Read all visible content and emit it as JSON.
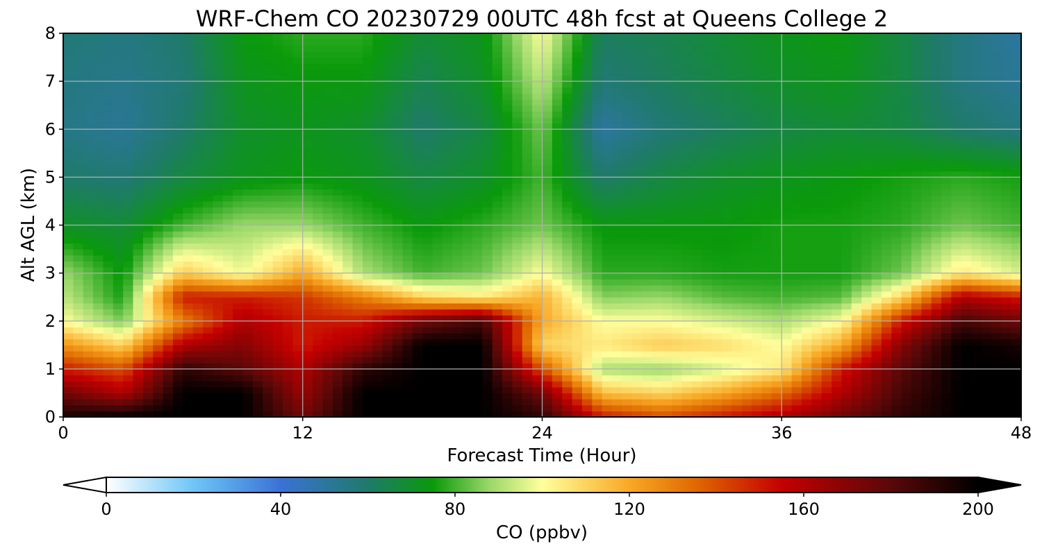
{
  "chart_data": {
    "type": "heatmap",
    "title": "WRF-Chem CO  20230729 00UTC 48h fcst at Queens College 2",
    "xlabel": "Forecast Time (Hour)",
    "ylabel": "Alt AGL (km)",
    "xlim": [
      0,
      48
    ],
    "ylim": [
      0,
      8
    ],
    "xticks": [
      0,
      12,
      24,
      36,
      48
    ],
    "yticks": [
      0,
      1,
      2,
      3,
      4,
      5,
      6,
      7,
      8
    ],
    "grid": true,
    "x": [
      0,
      3,
      6,
      9,
      12,
      15,
      18,
      21,
      24,
      27,
      30,
      33,
      36,
      39,
      42,
      45,
      48
    ],
    "y": [
      0,
      0.5,
      1,
      1.5,
      2,
      2.5,
      3,
      4,
      5,
      6,
      7,
      8
    ],
    "z": [
      [
        195,
        200,
        200,
        200,
        175,
        200,
        200,
        200,
        190,
        150,
        140,
        150,
        160,
        175,
        190,
        200,
        200
      ],
      [
        175,
        160,
        200,
        200,
        165,
        200,
        200,
        200,
        175,
        115,
        110,
        120,
        135,
        160,
        185,
        200,
        200
      ],
      [
        150,
        140,
        190,
        180,
        160,
        190,
        200,
        200,
        140,
        90,
        88,
        95,
        105,
        150,
        180,
        200,
        200
      ],
      [
        125,
        110,
        160,
        170,
        150,
        165,
        200,
        200,
        110,
        105,
        112,
        108,
        100,
        120,
        170,
        200,
        195
      ],
      [
        100,
        85,
        130,
        160,
        150,
        150,
        175,
        185,
        120,
        100,
        100,
        95,
        90,
        100,
        150,
        185,
        175
      ],
      [
        92,
        76,
        150,
        150,
        145,
        130,
        110,
        105,
        118,
        86,
        88,
        82,
        80,
        82,
        110,
        160,
        150
      ],
      [
        88,
        74,
        112,
        98,
        120,
        90,
        80,
        84,
        100,
        78,
        78,
        76,
        76,
        76,
        84,
        105,
        95
      ],
      [
        70,
        68,
        80,
        88,
        88,
        80,
        74,
        78,
        84,
        74,
        74,
        74,
        76,
        76,
        78,
        84,
        80
      ],
      [
        60,
        58,
        66,
        72,
        74,
        72,
        66,
        70,
        80,
        60,
        66,
        70,
        72,
        74,
        76,
        78,
        76
      ],
      [
        55,
        52,
        60,
        70,
        72,
        70,
        60,
        66,
        84,
        50,
        58,
        62,
        66,
        68,
        66,
        60,
        56
      ],
      [
        56,
        54,
        58,
        72,
        74,
        74,
        64,
        70,
        92,
        58,
        62,
        66,
        70,
        72,
        66,
        56,
        52
      ],
      [
        58,
        56,
        60,
        74,
        78,
        78,
        68,
        72,
        100,
        62,
        64,
        68,
        72,
        74,
        66,
        56,
        50
      ]
    ],
    "colorbar": {
      "label": "CO  (ppbv)",
      "min": 0,
      "max": 200,
      "ticks": [
        0,
        40,
        80,
        120,
        160,
        200
      ],
      "extend": "both",
      "stops": [
        {
          "v": 0,
          "c": "#ffffff"
        },
        {
          "v": 20,
          "c": "#6ec6f6"
        },
        {
          "v": 40,
          "c": "#3a72d6"
        },
        {
          "v": 60,
          "c": "#1f7a6a"
        },
        {
          "v": 75,
          "c": "#0a9a0a"
        },
        {
          "v": 88,
          "c": "#9bd86a"
        },
        {
          "v": 100,
          "c": "#ffff9c"
        },
        {
          "v": 120,
          "c": "#f9a825"
        },
        {
          "v": 135,
          "c": "#e06a00"
        },
        {
          "v": 155,
          "c": "#c40000"
        },
        {
          "v": 180,
          "c": "#5a0808"
        },
        {
          "v": 200,
          "c": "#000000"
        }
      ]
    }
  }
}
